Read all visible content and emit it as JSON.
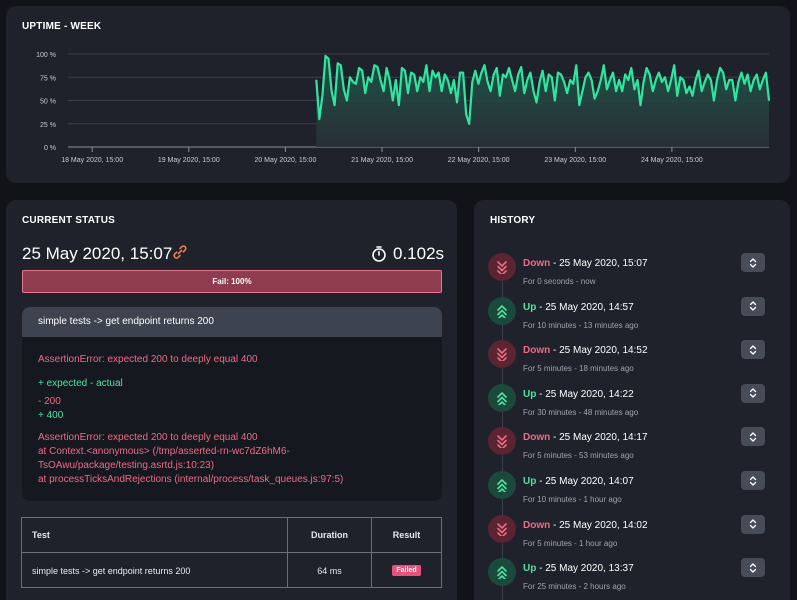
{
  "uptime": {
    "title": "UPTIME - WEEK",
    "y_ticks": [
      "100 %",
      "75 %",
      "50 %",
      "25 %",
      "0 %"
    ],
    "x_ticks": [
      "18 May 2020, 15:00",
      "19 May 2020, 15:00",
      "20 May 2020, 15:00",
      "21 May 2020, 15:00",
      "22 May 2020, 15:00",
      "23 May 2020, 15:00",
      "24 May 2020, 15:00"
    ],
    "line_color": "#2ee6a0"
  },
  "chart_data": {
    "type": "area",
    "title": "UPTIME - WEEK",
    "xlabel": "",
    "ylabel": "",
    "ylim": [
      0,
      100
    ],
    "x_range": [
      "18 May 2020, 09:00",
      "25 May 2020, 15:07"
    ],
    "data_start": "20 May 2020, 22:40",
    "data_end": "25 May 2020, 15:07",
    "grid": true,
    "values": [
      72,
      30,
      55,
      98,
      95,
      60,
      45,
      90,
      88,
      62,
      50,
      75,
      70,
      68,
      85,
      82,
      58,
      75,
      70,
      88,
      86,
      72,
      60,
      85,
      72,
      50,
      72,
      45,
      85,
      82,
      58,
      80,
      78,
      60,
      75,
      70,
      88,
      60,
      82,
      75,
      80,
      60,
      78,
      72,
      58,
      72,
      48,
      80,
      80,
      35,
      25,
      70,
      82,
      68,
      80,
      88,
      70,
      60,
      78,
      85,
      55,
      78,
      75,
      85,
      72,
      60,
      78,
      86,
      58,
      72,
      80,
      60,
      48,
      70,
      82,
      60,
      78,
      75,
      50,
      80,
      78,
      70,
      58,
      72,
      68,
      88,
      45,
      60,
      75,
      80,
      72,
      52,
      60,
      72,
      88,
      62,
      72,
      80,
      60,
      72,
      60,
      78,
      72,
      85,
      62,
      72,
      45,
      70,
      85,
      78,
      60,
      72,
      80,
      70,
      75,
      60,
      72,
      88,
      55,
      75,
      72,
      58,
      65,
      55,
      72,
      82,
      60,
      70,
      78,
      72,
      50,
      72,
      85,
      80,
      62,
      72,
      72,
      50,
      70,
      80,
      68,
      78,
      60,
      72,
      78,
      62,
      72,
      80,
      50
    ]
  },
  "status": {
    "title": "CURRENT STATUS",
    "date": "25 May 2020, 15:07",
    "duration": "0.102s",
    "fail_label": "Fail: 100%",
    "test_name": "simple tests -> get endpoint returns 200",
    "error_lines": {
      "assert1": "AssertionError: expected 200 to deeply equal 400",
      "expected_actual": "+ expected - actual",
      "minus": "- 200",
      "plus": "+ 400",
      "assert2": "AssertionError: expected 200 to deeply equal 400",
      "at1": "at Context.<anonymous> (/tmp/asserted-rn-wc7dZ6hM6-",
      "at1b": "TsOAwu/package/testing.asrtd.js:10:23)",
      "at2": "at processTicksAndRejections (internal/process/task_queues.js:97:5)"
    },
    "table": {
      "headers": [
        "Test",
        "Duration",
        "Result"
      ],
      "row": {
        "test": "simple tests -> get endpoint returns 200",
        "duration": "64 ms",
        "result": "Failed"
      }
    },
    "colors": {
      "fail": "#8f3c4f",
      "error_text": "#ef6b84",
      "ok_text": "#4fe3a1"
    }
  },
  "history": {
    "title": "HISTORY",
    "items": [
      {
        "status": "Down",
        "sep": " - ",
        "time": "25 May 2020, 15:07",
        "sub": "For 0 seconds - now",
        "kind": "down"
      },
      {
        "status": "Up",
        "sep": " - ",
        "time": "25 May 2020, 14:57",
        "sub": "For 10 minutes - 13 minutes ago",
        "kind": "up"
      },
      {
        "status": "Down",
        "sep": " - ",
        "time": "25 May 2020, 14:52",
        "sub": "For 5 minutes - 18 minutes ago",
        "kind": "down"
      },
      {
        "status": "Up",
        "sep": " - ",
        "time": "25 May 2020, 14:22",
        "sub": "For 30 minutes - 48 minutes ago",
        "kind": "up"
      },
      {
        "status": "Down",
        "sep": " - ",
        "time": "25 May 2020, 14:17",
        "sub": "For 5 minutes - 53 minutes ago",
        "kind": "down"
      },
      {
        "status": "Up",
        "sep": " - ",
        "time": "25 May 2020, 14:07",
        "sub": "For 10 minutes - 1 hour ago",
        "kind": "up"
      },
      {
        "status": "Down",
        "sep": " - ",
        "time": "25 May 2020, 14:02",
        "sub": "For 5 minutes - 1 hour ago",
        "kind": "down"
      },
      {
        "status": "Up",
        "sep": " - ",
        "time": "25 May 2020, 13:37",
        "sub": "For 25 minutes - 2 hours ago",
        "kind": "up"
      }
    ],
    "icons": {
      "down": "chevrons-down-icon",
      "up": "chevrons-up-icon",
      "expand": "expand-icon"
    }
  }
}
